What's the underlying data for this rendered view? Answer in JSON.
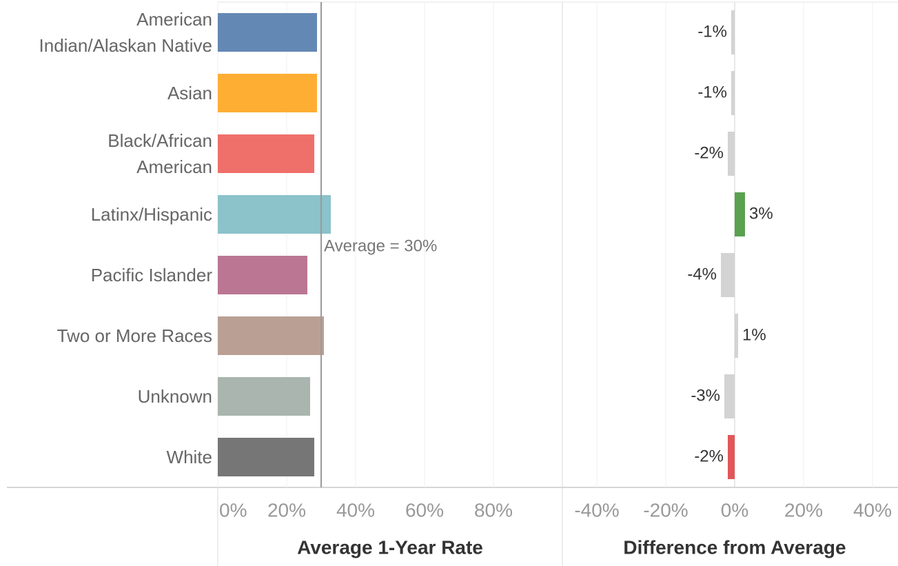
{
  "chart_data": [
    {
      "type": "bar",
      "orientation": "horizontal",
      "title": "Average 1-Year Rate",
      "categories": [
        "American Indian/Alaskan Native",
        "Asian",
        "Black/African American",
        "Latinx/Hispanic",
        "Pacific Islander",
        "Two or More Races",
        "Unknown",
        "White"
      ],
      "values": [
        28.8,
        28.8,
        28,
        32.8,
        26,
        30.8,
        26.8,
        28
      ],
      "colors": [
        "#6388b4",
        "#ffae34",
        "#ef6f6a",
        "#8cc2ca",
        "#bb7693",
        "#baa094",
        "#a9b5ae",
        "#767676"
      ],
      "xlim": [
        0,
        100
      ],
      "xticks": [
        {
          "value": 0,
          "label": "0%"
        },
        {
          "value": 20,
          "label": "20%"
        },
        {
          "value": 40,
          "label": "40%"
        },
        {
          "value": 60,
          "label": "60%"
        },
        {
          "value": 80,
          "label": "80%"
        }
      ],
      "reference_line": {
        "value": 30,
        "label": "Average = 30%"
      },
      "grid": true
    },
    {
      "type": "bar",
      "orientation": "horizontal",
      "title": "Difference from Average",
      "values": [
        -1,
        -1,
        -2,
        3,
        -4,
        1,
        -3,
        -2
      ],
      "value_labels": [
        "-1%",
        "-1%",
        "-2%",
        "3%",
        "-4%",
        "1%",
        "-3%",
        "-2%"
      ],
      "colors": [
        "#d3d3d3",
        "#d3d3d3",
        "#d3d3d3",
        "#59a14f",
        "#d3d3d3",
        "#d3d3d3",
        "#d3d3d3",
        "#e15759"
      ],
      "xlim": [
        -50,
        47.4
      ],
      "xticks": [
        {
          "value": -40,
          "label": "-40%"
        },
        {
          "value": -20,
          "label": "-20%"
        },
        {
          "value": 0,
          "label": "0%"
        },
        {
          "value": 20,
          "label": "20%"
        },
        {
          "value": 40,
          "label": "40%"
        }
      ],
      "grid": true
    }
  ]
}
